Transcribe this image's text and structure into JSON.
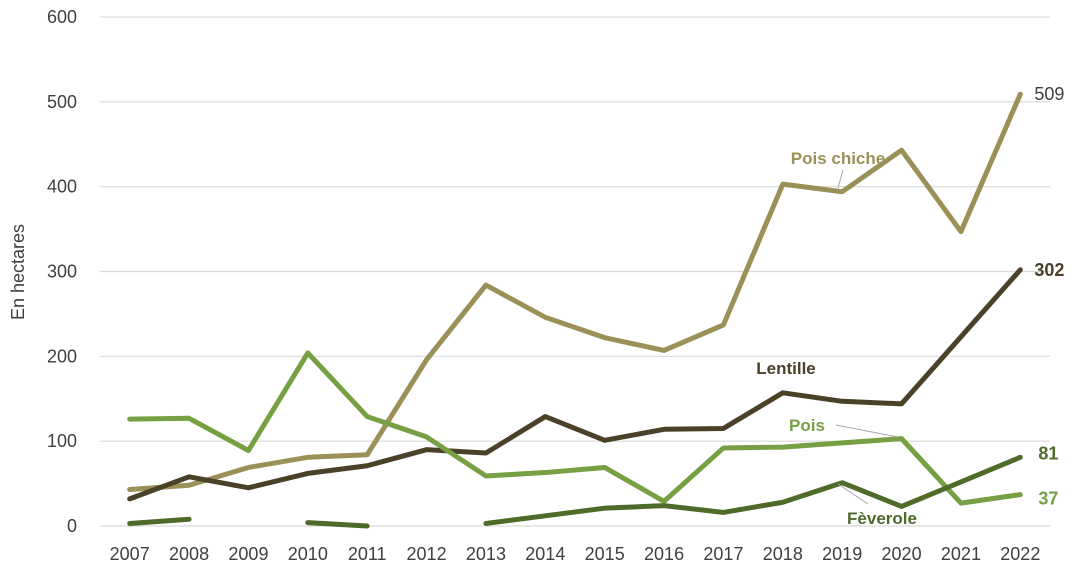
{
  "chart_data": {
    "type": "line",
    "ylabel": "En hectares",
    "ylim": [
      0,
      600
    ],
    "yticks": [
      "0",
      "100",
      "200",
      "300",
      "400",
      "500",
      "600"
    ],
    "categories": [
      "2007",
      "2008",
      "2009",
      "2010",
      "2011",
      "2012",
      "2013",
      "2014",
      "2015",
      "2016",
      "2017",
      "2018",
      "2019",
      "2020",
      "2021",
      "2022"
    ],
    "grid": true,
    "series": [
      {
        "name": "Pois chiche",
        "color": "#9B9158",
        "values": [
          43,
          48,
          69,
          81,
          84,
          196,
          284,
          246,
          222,
          207,
          237,
          403,
          394,
          443,
          347,
          509
        ],
        "end_label": "509"
      },
      {
        "name": "Lentille",
        "color": "#4A4128",
        "values": [
          32,
          58,
          45,
          62,
          71,
          90,
          86,
          129,
          101,
          114,
          115,
          157,
          147,
          144,
          223,
          302
        ],
        "end_label": "302"
      },
      {
        "name": "Pois",
        "color": "#76A043",
        "values": [
          126,
          127,
          89,
          204,
          129,
          105,
          59,
          63,
          69,
          29,
          92,
          93,
          98,
          103,
          27,
          37
        ],
        "end_label": "37"
      },
      {
        "name": "Fèverole",
        "color": "#4E6B2A",
        "values": [
          3,
          8,
          null,
          4,
          0,
          null,
          3,
          12,
          21,
          24,
          16,
          28,
          51,
          23,
          52,
          81
        ],
        "end_label": "81"
      }
    ]
  }
}
